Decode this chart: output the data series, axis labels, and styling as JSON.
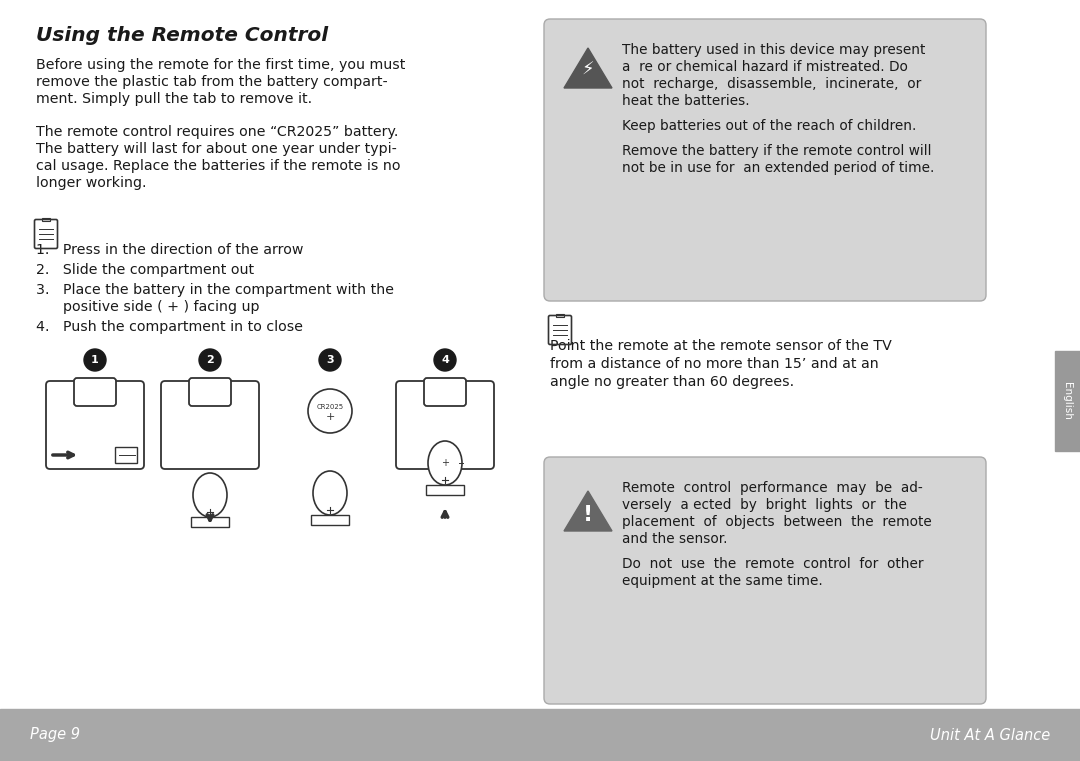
{
  "bg_color": "#ffffff",
  "footer_color": "#a8a8a8",
  "warning_box_color": "#d5d5d5",
  "tab_color": "#999999",
  "title": "Using the Remote Control",
  "para1_lines": [
    "Before using the remote for the first time, you must",
    "remove the plastic tab from the battery compart-",
    "ment. Simply pull the tab to remove it."
  ],
  "para2_lines": [
    "The remote control requires one “CR2025” battery.",
    "The battery will last for about one year under typi-",
    "cal usage. Replace the batteries if the remote is no",
    "longer working."
  ],
  "step1": "Press in the direction of the arrow",
  "step2": "Slide the compartment out",
  "step3a": "Place the battery in the compartment with the",
  "step3b": "positive side ( + ) facing up",
  "step4": "Push the compartment in to close",
  "use_text_lines": [
    "Point the remote at the remote sensor of the TV",
    "from a distance of no more than 15’ and at an",
    "angle no greater than 60 degrees."
  ],
  "warn1_line1": "The battery used in this device may present",
  "warn1_line2": "a  re or chemical hazard if mistreated. Do",
  "warn1_line3": "not  recharge,  disassemble,  incinerate,  or",
  "warn1_line4": "heat the batteries.",
  "warn1_line5": "Keep batteries out of the reach of children.",
  "warn1_line6": "Remove the battery if the remote control will",
  "warn1_line7": "not be in use for  an extended period of time.",
  "warn2_line1": "Remote  control  performance  may  be  ad-",
  "warn2_line2": "versely  a ected  by  bright  lights  or  the",
  "warn2_line3": "placement  of  objects  between  the  remote",
  "warn2_line4": "and the sensor.",
  "warn2_line5": "Do  not  use  the  remote  control  for  other",
  "warn2_line6": "equipment at the same time.",
  "page_label": "Page 9",
  "unit_label": "Unit At A Glance",
  "english_tab": "English",
  "text_color": "#1a1a1a",
  "white": "#ffffff",
  "dark": "#333333",
  "mid_gray": "#555555"
}
